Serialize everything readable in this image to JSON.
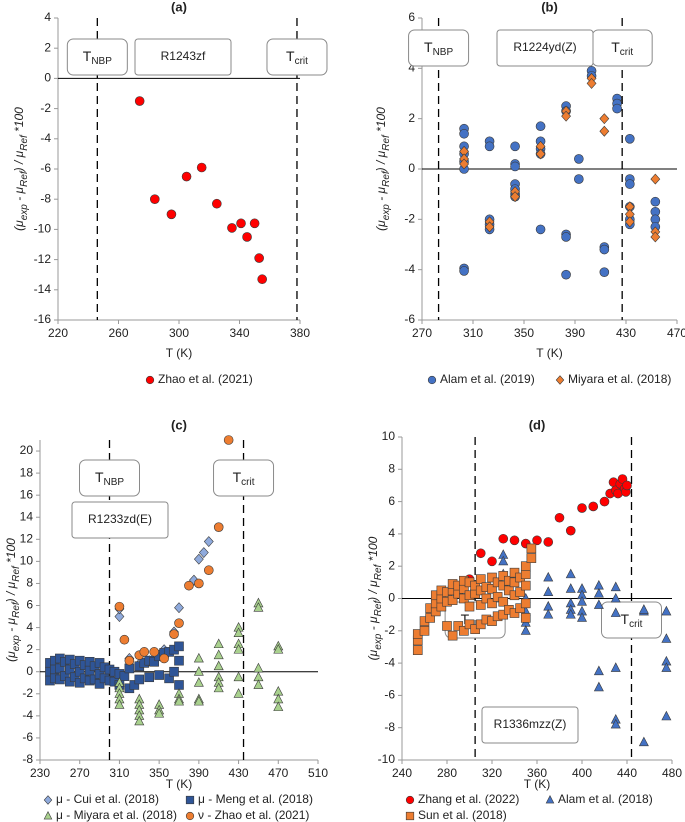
{
  "chart_data": [
    {
      "type": "scatter",
      "title": "(a)",
      "xlabel": "T (K)",
      "ylabel": [
        {
          "text": "(μ"
        },
        {
          "text": "exp",
          "sub": true
        },
        {
          "text": " - μ"
        },
        {
          "text": "Ref",
          "sub": true
        },
        {
          "text": ") / μ"
        },
        {
          "text": "Ref",
          "sub": true
        },
        {
          "text": " *100"
        }
      ],
      "xlim": [
        220,
        380
      ],
      "xticks": [
        220,
        260,
        300,
        340,
        380
      ],
      "ylim": [
        -16,
        4
      ],
      "yticks": [
        -16,
        -14,
        -12,
        -10,
        -8,
        -6,
        -4,
        -2,
        0,
        2,
        4
      ],
      "substance": "R1243zf",
      "reference_lines": [
        {
          "value": 246,
          "text": "T",
          "sub": "NBP"
        },
        {
          "value": 378,
          "text": "T",
          "sub": "crit"
        }
      ],
      "series": [
        {
          "name": "Zhao et al. (2021)",
          "color": "#FF0000",
          "marker": "circle",
          "x": [
            274,
            284,
            295,
            305,
            315,
            325,
            335,
            341,
            345,
            350,
            353,
            355
          ],
          "values": [
            -1.5,
            -8,
            -9,
            -6.5,
            -5.9,
            -8.3,
            -9.9,
            -9.6,
            -10.5,
            -9.6,
            -11.9,
            -13.3
          ]
        }
      ]
    },
    {
      "type": "scatter",
      "title": "(b)",
      "xlabel": "T (K)",
      "ylabel": [
        {
          "text": "(μ"
        },
        {
          "text": "exp",
          "sub": true
        },
        {
          "text": " - μ"
        },
        {
          "text": "Ref",
          "sub": true
        },
        {
          "text": ") / μ"
        },
        {
          "text": "Ref",
          "sub": true
        },
        {
          "text": " *100"
        }
      ],
      "xlim": [
        270,
        470
      ],
      "xticks": [
        270,
        310,
        350,
        390,
        430,
        470
      ],
      "ylim": [
        -6,
        6
      ],
      "yticks": [
        -6,
        -4,
        -2,
        0,
        2,
        4,
        6
      ],
      "substance": "R1224yd(Z)",
      "reference_lines": [
        {
          "value": 283,
          "text": "T",
          "sub": "NBP"
        },
        {
          "value": 427,
          "text": "T",
          "sub": "crit"
        }
      ],
      "series": [
        {
          "name": "Alam et al. (2019)",
          "color": "#4472C4",
          "marker": "circle",
          "x": [
            303,
            303,
            303,
            303,
            303,
            303,
            303,
            303,
            323,
            323,
            323,
            323,
            323,
            343,
            343,
            343,
            343,
            343,
            343,
            343,
            363,
            363,
            363,
            363,
            363,
            383,
            383,
            383,
            383,
            383,
            393,
            393,
            403,
            403,
            413,
            413,
            413,
            423,
            423,
            423,
            433,
            433,
            433,
            433,
            433,
            433,
            453,
            453,
            453,
            453
          ],
          "values": [
            1.6,
            1.4,
            0.9,
            0.6,
            0.3,
            0,
            -3.95,
            -4.05,
            1.1,
            0.9,
            -2.0,
            -2.2,
            -2.4,
            0.9,
            0.2,
            0.1,
            -0.6,
            -0.8,
            -1.0,
            -1.1,
            1.7,
            1.1,
            0.8,
            0.6,
            -2.4,
            2.5,
            2.3,
            -2.6,
            -2.7,
            -4.2,
            0.4,
            -0.4,
            3.9,
            3.7,
            -3.1,
            -3.2,
            -4.1,
            2.8,
            2.6,
            2.4,
            1.2,
            -0.4,
            -0.6,
            -1.5,
            -2.0,
            -2.2,
            -1.3,
            -1.7,
            -2.0,
            -2.3
          ]
        },
        {
          "name": "Miyara et al. (2018)",
          "color": "#ED7D31",
          "marker": "diamond",
          "x": [
            303,
            303,
            303,
            323,
            323,
            343,
            343,
            363,
            363,
            383,
            383,
            403,
            403,
            413,
            413,
            433,
            433,
            433,
            453,
            453,
            453
          ],
          "values": [
            0.7,
            0.4,
            0.2,
            -2.1,
            -2.3,
            -0.9,
            -1.1,
            0.9,
            0.6,
            2.3,
            2.1,
            3.6,
            3.4,
            2.0,
            1.5,
            -1.5,
            -1.8,
            -2.1,
            -0.4,
            -2.5,
            -2.7
          ]
        }
      ]
    },
    {
      "type": "scatter",
      "title": "(c)",
      "xlabel": "T (K)",
      "ylabel": [
        {
          "text": "(μ"
        },
        {
          "text": "exp",
          "sub": true
        },
        {
          "text": " - μ"
        },
        {
          "text": "Ref",
          "sub": true
        },
        {
          "text": ") / μ"
        },
        {
          "text": "Ref",
          "sub": true
        },
        {
          "text": " *100"
        }
      ],
      "xlim": [
        230,
        510
      ],
      "xticks": [
        230,
        270,
        310,
        350,
        390,
        430,
        470,
        510
      ],
      "ylim": [
        -8,
        21
      ],
      "yticks": [
        -8,
        -6,
        -4,
        -2,
        0,
        2,
        4,
        6,
        8,
        10,
        12,
        14,
        16,
        18,
        20
      ],
      "substance": "R1233zd(E)",
      "reference_lines": [
        {
          "value": 300,
          "text": "T",
          "sub": "NBP"
        },
        {
          "value": 435,
          "text": "T",
          "sub": "crit"
        }
      ],
      "series": [
        {
          "name": "μ - Cui et al. (2018)",
          "color": "#8FAADC",
          "marker": "diamond",
          "x": [
            310,
            310,
            320,
            330,
            340,
            350,
            355,
            365,
            370,
            385,
            390,
            395,
            400
          ],
          "values": [
            5.0,
            5.7,
            1.2,
            0.7,
            1.0,
            1.5,
            2.0,
            3.6,
            5.8,
            8.3,
            10.2,
            10.8,
            11.8
          ]
        },
        {
          "name": "μ - Meng et al. (2018)",
          "color": "#2F5597",
          "marker": "square",
          "x": [
            240,
            240,
            240,
            245,
            245,
            245,
            250,
            250,
            250,
            255,
            255,
            260,
            260,
            260,
            265,
            265,
            270,
            270,
            270,
            275,
            275,
            280,
            280,
            280,
            285,
            285,
            290,
            290,
            290,
            295,
            295,
            300,
            300,
            305,
            305,
            310,
            310,
            315,
            320,
            320,
            325,
            330,
            330,
            335,
            340,
            340,
            345,
            350,
            350,
            355,
            360,
            360,
            365,
            365,
            370,
            370,
            370
          ],
          "values": [
            0.8,
            0,
            -0.8,
            1.0,
            0.2,
            -0.6,
            1.2,
            0.3,
            -0.7,
            0.9,
            -0.4,
            1.1,
            0.2,
            -0.9,
            0.7,
            -0.5,
            1.0,
            0,
            -1.0,
            0.6,
            -0.6,
            0.9,
            0.1,
            -0.8,
            0.5,
            -0.7,
            0.8,
            -0.2,
            -1.1,
            0.4,
            -0.6,
            0.2,
            -0.8,
            0,
            -0.9,
            -0.2,
            -1.2,
            -0.4,
            0.3,
            -1.5,
            -1.2,
            0.5,
            -0.7,
            0.8,
            1.0,
            -0.5,
            0.9,
            1.4,
            -0.3,
            1.7,
            1.8,
            -0.6,
            2.0,
            0,
            2.3,
            1.0,
            -1.2
          ]
        },
        {
          "name": "μ - Miyara et al. (2018)",
          "color": "#A9D18E",
          "marker": "triangle",
          "x": [
            310,
            310,
            310,
            310,
            310,
            330,
            330,
            330,
            330,
            330,
            350,
            350,
            350,
            370,
            370,
            370,
            390,
            390,
            390,
            390,
            390,
            410,
            410,
            410,
            410,
            410,
            410,
            430,
            430,
            430,
            430,
            430,
            430,
            450,
            450,
            450,
            450,
            450,
            470,
            470,
            470,
            470,
            470
          ],
          "values": [
            -1,
            -1.5,
            -2,
            -2.5,
            -3,
            -2.5,
            -3,
            -3.5,
            -4,
            -4.5,
            -3,
            -3.5,
            -3.8,
            -2,
            -2.5,
            -2.7,
            1.2,
            0,
            -1,
            -2.5,
            -2.7,
            2.5,
            1.5,
            0.5,
            -0.5,
            -1,
            -1.5,
            4,
            3.5,
            2.5,
            2,
            -0.5,
            -2,
            6.2,
            5.8,
            0.3,
            -0.5,
            -1.2,
            2.3,
            2,
            -1.8,
            -2.5,
            -3.2
          ]
        },
        {
          "name": "ν - Zhao et al. (2021)",
          "color": "#ED7D31",
          "marker": "circle",
          "x": [
            310,
            315,
            320,
            330,
            335,
            345,
            355,
            365,
            370,
            380,
            390,
            400,
            410,
            420
          ],
          "values": [
            5.9,
            2.9,
            1.0,
            1.5,
            1.8,
            1.8,
            1.2,
            3.4,
            4.4,
            7.8,
            8.0,
            9.2,
            13.1,
            21
          ]
        }
      ]
    },
    {
      "type": "scatter",
      "title": "(d)",
      "xlabel": "T (K)",
      "ylabel": [
        {
          "text": "(μ"
        },
        {
          "text": "exp",
          "sub": true
        },
        {
          "text": " - μ"
        },
        {
          "text": "Ref",
          "sub": true
        },
        {
          "text": ") / μ"
        },
        {
          "text": "Ref",
          "sub": true
        },
        {
          "text": " *100"
        }
      ],
      "xlim": [
        240,
        480
      ],
      "xticks": [
        240,
        280,
        320,
        360,
        400,
        440,
        480
      ],
      "ylim": [
        -10,
        10
      ],
      "yticks": [
        -10,
        -8,
        -6,
        -4,
        -2,
        0,
        2,
        4,
        6,
        8,
        10
      ],
      "substance": "R1336mzz(Z)",
      "reference_lines": [
        {
          "value": 305,
          "text": "T",
          "sub": "NBP"
        },
        {
          "value": 444,
          "text": "T",
          "sub": "crit"
        }
      ],
      "series": [
        {
          "name": "Zhang et al. (2022)",
          "color": "#FF0000",
          "marker": "circle",
          "x": [
            300,
            310,
            320,
            330,
            340,
            350,
            360,
            370,
            380,
            390,
            400,
            410,
            420,
            425,
            428,
            430,
            432,
            434,
            436,
            438,
            439,
            440
          ],
          "values": [
            1.2,
            2.8,
            2.3,
            3.7,
            3.6,
            3.4,
            3.6,
            3.5,
            5.0,
            4.2,
            5.6,
            5.7,
            6.0,
            6.5,
            7.2,
            6.7,
            6.5,
            7.1,
            7.4,
            6.8,
            6.6,
            7.0
          ]
        },
        {
          "name": "Alam et al. (2018)",
          "color": "#4472C4",
          "marker": "triangle",
          "x": [
            330,
            330,
            330,
            350,
            350,
            350,
            350,
            350,
            370,
            370,
            370,
            370,
            390,
            390,
            390,
            390,
            390,
            400,
            400,
            400,
            400,
            400,
            415,
            415,
            415,
            415,
            415,
            430,
            430,
            430,
            430,
            430,
            430,
            455,
            455,
            455,
            475,
            475,
            475,
            475,
            475
          ],
          "values": [
            2.7,
            2.3,
            1.5,
            1.9,
            0,
            -0.8,
            -1.5,
            -2.0,
            1.3,
            0.4,
            -0.5,
            -1.0,
            1.5,
            0.6,
            -0.3,
            -0.7,
            -1.0,
            0.6,
            0.2,
            -0.2,
            -0.8,
            -1.2,
            0.8,
            0.3,
            -0.4,
            -4.5,
            -5.5,
            0.7,
            0,
            -0.9,
            -7.5,
            -7.8,
            -4.3,
            -0.8,
            -0.7,
            -8.9,
            -0.8,
            -2.5,
            -3.9,
            -4.3,
            -7.3
          ]
        },
        {
          "name": "Sun et al. (2018)",
          "color": "#ED7D31",
          "marker": "square",
          "x": [
            254,
            254,
            254,
            260,
            260,
            265,
            265,
            270,
            270,
            270,
            275,
            275,
            275,
            280,
            280,
            280,
            285,
            285,
            285,
            285,
            290,
            290,
            290,
            295,
            295,
            295,
            295,
            300,
            300,
            300,
            300,
            305,
            305,
            305,
            310,
            310,
            310,
            310,
            315,
            315,
            315,
            320,
            320,
            320,
            320,
            325,
            325,
            325,
            330,
            330,
            330,
            330,
            335,
            335,
            335,
            340,
            340,
            340,
            340,
            345,
            345,
            345,
            350,
            350,
            350,
            350,
            350,
            355,
            355
          ],
          "values": [
            -3.2,
            -2.6,
            -2.2,
            -2.0,
            -1.4,
            -1.2,
            -0.6,
            -0.8,
            -0.3,
            0.2,
            -0.5,
            0,
            0.5,
            -1.7,
            -0.2,
            0.4,
            -2.3,
            -0.1,
            0.5,
            0.9,
            -1.7,
            0.3,
            0.8,
            -2.0,
            0,
            0.6,
            1.1,
            -1.6,
            -0.5,
            0.2,
            1.0,
            -1.9,
            0.3,
            0.8,
            -1.6,
            -0.4,
            0.5,
            1.2,
            -1.3,
            0,
            0.7,
            -1.4,
            -0.3,
            0.6,
            1.3,
            -1.1,
            0.1,
            1.0,
            -1.0,
            -0.2,
            0.8,
            1.4,
            -0.7,
            0.5,
            1.1,
            -0.9,
            0.2,
            1.0,
            1.6,
            -0.6,
            0.4,
            1.3,
            -1.2,
            -0.3,
            0.8,
            1.5,
            2.0,
            3.1,
            2.5
          ]
        }
      ]
    }
  ]
}
